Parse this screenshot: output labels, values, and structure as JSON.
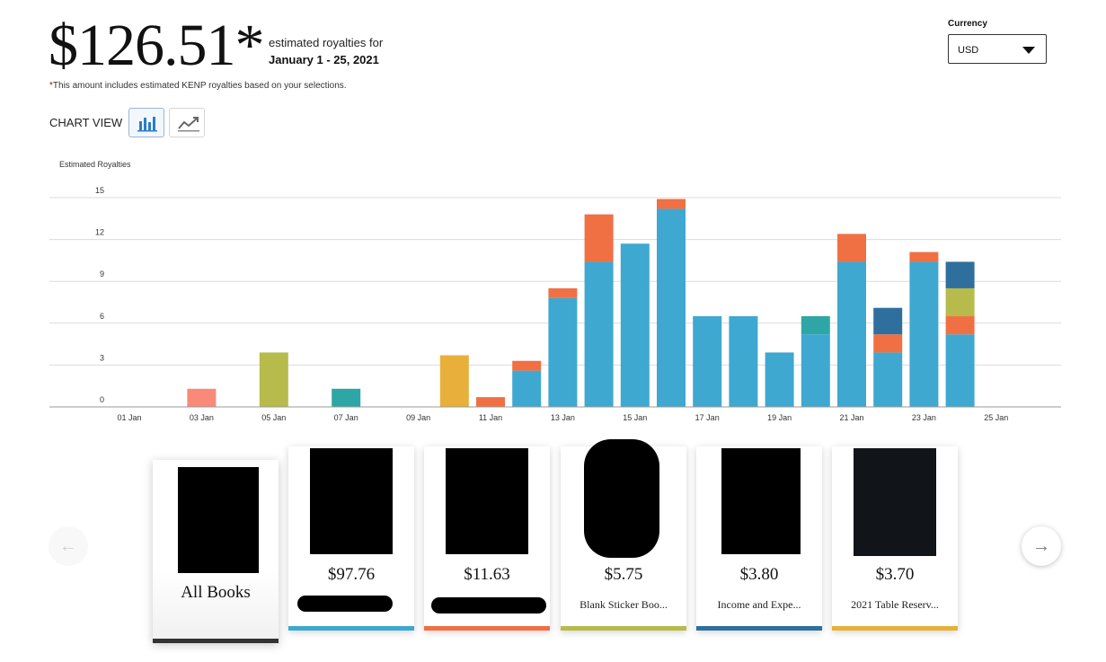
{
  "summary": {
    "amount": "$126.51*",
    "label": "estimated royalties for",
    "date_range": "January 1 - 25, 2021",
    "note_star": "*",
    "note": "This amount includes estimated KENP royalties based on your selections."
  },
  "currency": {
    "label": "Currency",
    "selected": "USD"
  },
  "chart_view": {
    "label": "CHART VIEW",
    "bar_icon": "bar-chart-icon",
    "line_icon": "line-chart-icon"
  },
  "chart_data": {
    "type": "bar",
    "stacked": true,
    "ylabel": "Estimated Royalties",
    "ylim": [
      0,
      15
    ],
    "yticks": [
      0,
      3,
      6,
      9,
      12,
      15
    ],
    "categories": [
      "01 Jan",
      "02 Jan",
      "03 Jan",
      "04 Jan",
      "05 Jan",
      "06 Jan",
      "07 Jan",
      "08 Jan",
      "09 Jan",
      "10 Jan",
      "11 Jan",
      "12 Jan",
      "13 Jan",
      "14 Jan",
      "15 Jan",
      "16 Jan",
      "17 Jan",
      "18 Jan",
      "19 Jan",
      "20 Jan",
      "21 Jan",
      "22 Jan",
      "23 Jan",
      "24 Jan",
      "25 Jan"
    ],
    "tick_labels": [
      "01 Jan",
      "03 Jan",
      "05 Jan",
      "07 Jan",
      "09 Jan",
      "11 Jan",
      "13 Jan",
      "15 Jan",
      "17 Jan",
      "19 Jan",
      "21 Jan",
      "23 Jan",
      "25 Jan"
    ],
    "grid": true,
    "series": [
      {
        "color": "#3ea8d1",
        "values": [
          0,
          0,
          0,
          0,
          0,
          0,
          0,
          0,
          0,
          0,
          0,
          2.6,
          7.8,
          10.4,
          11.7,
          14.2,
          6.5,
          6.5,
          3.9,
          5.2,
          10.4,
          3.9,
          10.4,
          5.2,
          0
        ]
      },
      {
        "color": "#f07043",
        "values": [
          0,
          0,
          0,
          0,
          0,
          0,
          0,
          0,
          0,
          0,
          0.7,
          0.7,
          0.7,
          3.4,
          0,
          0.7,
          0,
          0,
          0,
          0,
          2.0,
          1.3,
          0.7,
          1.3,
          0
        ]
      },
      {
        "color": "#b6bb4c",
        "values": [
          0,
          0,
          0,
          0,
          3.9,
          0,
          0,
          0,
          0,
          0,
          0,
          0,
          0,
          0,
          0,
          0,
          0,
          0,
          0,
          0,
          0,
          0,
          0,
          2.0,
          0
        ]
      },
      {
        "color": "#2f6f9e",
        "values": [
          0,
          0,
          0,
          0,
          0,
          0,
          0,
          0,
          0,
          0,
          0,
          0,
          0,
          0,
          0,
          0,
          0,
          0,
          0,
          0,
          0,
          1.9,
          0,
          1.9,
          0
        ]
      },
      {
        "color": "#2fa6a6",
        "values": [
          0,
          0,
          0,
          0,
          0,
          0,
          1.3,
          0,
          0,
          0,
          0,
          0,
          0,
          0,
          0,
          0,
          0,
          0,
          0,
          1.3,
          0,
          0,
          0,
          0,
          0
        ]
      },
      {
        "color": "#f88a77",
        "values": [
          0,
          0,
          1.3,
          0,
          0,
          0,
          0,
          0,
          0,
          0,
          0,
          0,
          0,
          0,
          0,
          0,
          0,
          0,
          0,
          0,
          0,
          0,
          0,
          0,
          0
        ]
      },
      {
        "color": "#e8b03b",
        "values": [
          0,
          0,
          0,
          0,
          0,
          0,
          0,
          0,
          0,
          3.7,
          0,
          0,
          0,
          0,
          0,
          0,
          0,
          0,
          0,
          0,
          0,
          0,
          0,
          0,
          0
        ]
      }
    ]
  },
  "books": [
    {
      "amount": "",
      "title": "All Books",
      "bar_color": "#333333"
    },
    {
      "amount": "$97.76",
      "title": "",
      "bar_color": "#3ea8d1"
    },
    {
      "amount": "$11.63",
      "title": "",
      "bar_color": "#f07043"
    },
    {
      "amount": "$5.75",
      "title": "Blank Sticker Boo...",
      "bar_color": "#b6bb4c"
    },
    {
      "amount": "$3.80",
      "title": "Income and Expe...",
      "bar_color": "#2f6f9e"
    },
    {
      "amount": "$3.70",
      "title": "2021 Table Reserv...",
      "bar_color": "#e8b03b"
    }
  ],
  "nav": {
    "prev": "←",
    "next": "→"
  }
}
